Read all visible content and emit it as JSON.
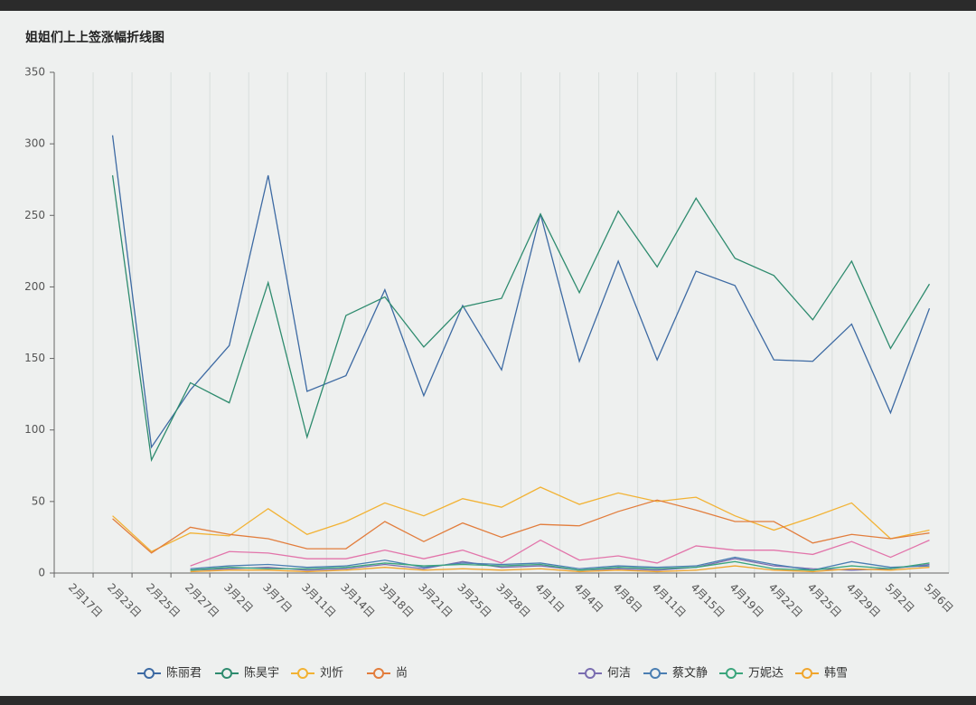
{
  "chart_data": {
    "type": "line",
    "title": "姐姐们上上签涨幅折线图",
    "categories": [
      "2月17日",
      "2月23日",
      "2月25日",
      "2月27日",
      "3月2日",
      "3月7日",
      "3月11日",
      "3月14日",
      "3月18日",
      "3月21日",
      "3月25日",
      "3月28日",
      "4月1日",
      "4月4日",
      "4月8日",
      "4月11日",
      "4月15日",
      "4月19日",
      "4月22日",
      "4月25日",
      "4月29日",
      "5月2日",
      "5月6日"
    ],
    "ylim": [
      0,
      350
    ],
    "yticks": [
      0,
      50,
      100,
      150,
      200,
      250,
      300,
      350
    ],
    "grid": true,
    "series": [
      {
        "name": "陈丽君",
        "color": "#3d6aa3",
        "values": [
          null,
          306,
          88,
          128,
          159,
          278,
          127,
          138,
          198,
          124,
          187,
          142,
          251,
          148,
          218,
          149,
          211,
          201,
          149,
          148,
          174,
          112,
          185
        ]
      },
      {
        "name": "陈昊宇",
        "color": "#2e8b6e",
        "values": [
          null,
          278,
          79,
          133,
          119,
          203,
          95,
          180,
          193,
          158,
          186,
          192,
          251,
          196,
          253,
          214,
          262,
          220,
          208,
          177,
          218,
          157,
          202
        ]
      },
      {
        "name": "刘忻",
        "color": "#f2b233",
        "values": [
          null,
          40,
          15,
          28,
          26,
          45,
          27,
          36,
          49,
          40,
          52,
          46,
          60,
          48,
          56,
          50,
          53,
          40,
          30,
          39,
          49,
          24,
          30
        ]
      },
      {
        "name": "尚",
        "color": "#e27d3c",
        "values": [
          null,
          38,
          14,
          32,
          27,
          24,
          17,
          17,
          36,
          22,
          35,
          25,
          34,
          33,
          43,
          51,
          44,
          36,
          36,
          21,
          27,
          24,
          28
        ]
      },
      {
        "color": "#e274aa",
        "values": [
          null,
          null,
          null,
          5,
          15,
          14,
          10,
          10,
          16,
          10,
          16,
          7,
          23,
          9,
          12,
          7,
          19,
          16,
          16,
          13,
          22,
          11,
          23
        ]
      },
      {
        "name": "何洁",
        "color": "#7a6db0",
        "values": [
          null,
          null,
          null,
          2,
          3,
          4,
          2,
          3,
          6,
          3,
          8,
          4,
          5,
          2,
          3,
          2,
          4,
          10,
          5,
          3,
          2,
          3,
          6
        ]
      },
      {
        "name": "蔡文静",
        "color": "#4a7eb2",
        "values": [
          null,
          null,
          null,
          3,
          5,
          6,
          4,
          5,
          9,
          4,
          7,
          6,
          7,
          3,
          5,
          4,
          5,
          11,
          6,
          2,
          8,
          4,
          5
        ]
      },
      {
        "name": "万妮达",
        "color": "#3ba57c",
        "values": [
          null,
          null,
          null,
          2,
          4,
          3,
          3,
          4,
          7,
          5,
          6,
          5,
          6,
          2,
          4,
          3,
          4,
          8,
          3,
          2,
          5,
          3,
          7
        ]
      },
      {
        "name": "韩雪",
        "color": "#f0a52c",
        "values": [
          null,
          null,
          null,
          1,
          2,
          2,
          1,
          2,
          4,
          2,
          3,
          2,
          3,
          1,
          2,
          1,
          2,
          5,
          2,
          1,
          3,
          2,
          4
        ]
      }
    ]
  }
}
